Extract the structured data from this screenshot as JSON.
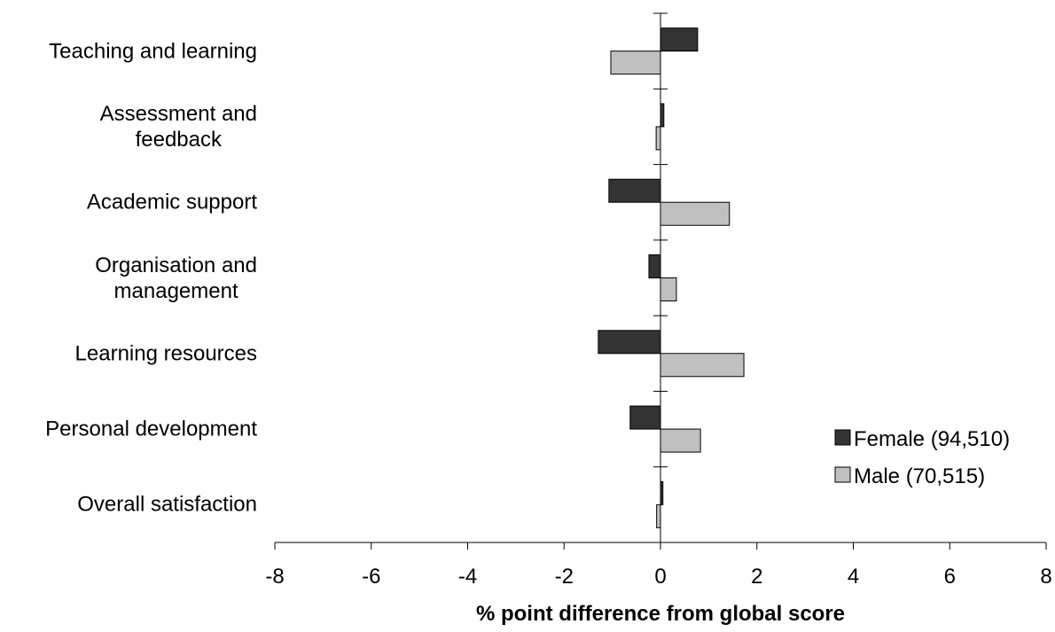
{
  "chart_data": {
    "type": "barh",
    "x_label": "% point difference from global score",
    "categories": [
      "Teaching and learning",
      "Assessment and\nfeedback",
      "Academic support",
      "Organisation and\nmanagement",
      "Learning resources",
      "Personal development",
      "Overall satisfaction"
    ],
    "series": [
      {
        "name": "Female (94,510)",
        "color": "#333333",
        "values": [
          0.77,
          0.07,
          -1.07,
          -0.24,
          -1.29,
          -0.63,
          0.05
        ]
      },
      {
        "name": "Male (70,515)",
        "color": "#c0c0c0",
        "values": [
          -1.03,
          -0.09,
          1.43,
          0.33,
          1.73,
          0.83,
          -0.08
        ]
      }
    ],
    "xlim": [
      -8,
      8
    ],
    "xticks": [
      -8,
      -6,
      -4,
      -2,
      0,
      2,
      4,
      6,
      8
    ],
    "legend": "lower right"
  }
}
